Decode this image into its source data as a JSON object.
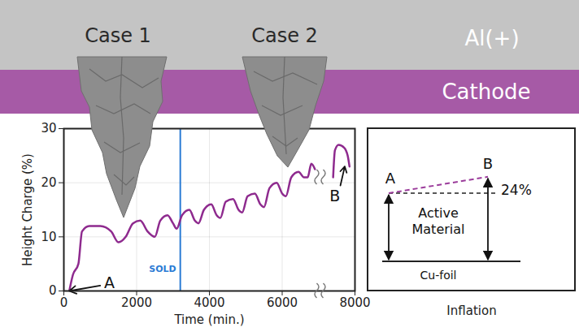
{
  "chart_data": {
    "type": "line",
    "x_label": "Time (min.)",
    "y_label": "Height Charge (%)",
    "xlim": [
      0,
      8000
    ],
    "ylim": [
      0,
      30
    ],
    "xticks": [
      0,
      2000,
      4000,
      6000,
      8000
    ],
    "yticks": [
      0,
      10,
      20,
      30
    ],
    "grid": true,
    "color": "#8e2a8e",
    "x": [
      150,
      250,
      400,
      500,
      700,
      1000,
      1300,
      1500,
      1700,
      1900,
      2100,
      2300,
      2500,
      2650,
      2850,
      3000,
      3100,
      3250,
      3450,
      3600,
      3700,
      3850,
      4050,
      4200,
      4300,
      4450,
      4650,
      4800,
      4900,
      5050,
      5250,
      5400,
      5500,
      5650,
      5850,
      6000,
      6100,
      6250,
      6450,
      6600,
      6700,
      6800,
      6900,
      7100,
      7400,
      7450,
      7550,
      7700,
      7800,
      7850
    ],
    "values": [
      0,
      3,
      5,
      11,
      12,
      12,
      11,
      9,
      10,
      12.5,
      13,
      11,
      10,
      13,
      14,
      12.5,
      11.5,
      14,
      15,
      13,
      12.5,
      15,
      16,
      14,
      13.5,
      16.5,
      17,
      15,
      14.5,
      17.5,
      18,
      16,
      15.5,
      19,
      20,
      18,
      17.5,
      21,
      22,
      21,
      21,
      23.5,
      22.5,
      null,
      21,
      26,
      27,
      26.5,
      25,
      23
    ],
    "annotations": [
      {
        "text": "SOLD",
        "x": 3200,
        "y": 4,
        "color": "#2a7bd4",
        "type": "vline"
      },
      {
        "text": "A",
        "x": 1250,
        "y": 1.5,
        "arrow_from": [
          1000,
          1
        ],
        "arrow_to": [
          150,
          0
        ]
      },
      {
        "text": "B",
        "x": 7450,
        "y": 17.5,
        "arrow_from": [
          7600,
          19.5
        ],
        "arrow_to": [
          7720,
          23
        ]
      }
    ]
  },
  "diagram": {
    "layers": [
      {
        "label": "Al(+)",
        "color": "#c4c4c4"
      },
      {
        "label": "Cathode",
        "color": "#a65aa6"
      }
    ],
    "cases": [
      "Case 1",
      "Case 2"
    ],
    "inflation": {
      "title": "Inflation",
      "start": "A",
      "end": "B",
      "increase": {
        "value": 24,
        "label": "24%"
      },
      "layer": "Active Material",
      "substrate": "Cu-foil"
    }
  }
}
